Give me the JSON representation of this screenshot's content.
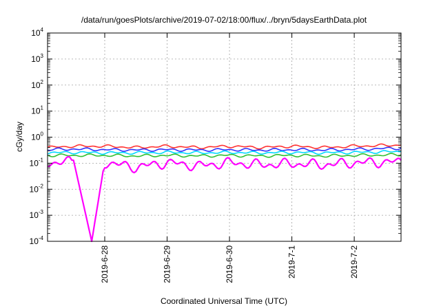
{
  "chart_data": {
    "type": "line",
    "title": "/data/run/goesPlots/archive/2019-07-02/18:00/flux/../bryn/5daysEarthData.plot",
    "xlabel": "Coordinated Universal Time (UTC)",
    "ylabel": "cGy/day",
    "yscale": "log",
    "ylim": [
      0.0001,
      10000
    ],
    "xlim": [
      "2019-06-27T02:00",
      "2019-07-02T18:00"
    ],
    "grid": true,
    "legend": "none",
    "y_ticks": [
      {
        "base": "10",
        "exp": "-4",
        "value": 0.0001
      },
      {
        "base": "10",
        "exp": "-3",
        "value": 0.001
      },
      {
        "base": "10",
        "exp": "-2",
        "value": 0.01
      },
      {
        "base": "10",
        "exp": "-1",
        "value": 0.1
      },
      {
        "base": "10",
        "exp": "0",
        "value": 1
      },
      {
        "base": "10",
        "exp": "1",
        "value": 10
      },
      {
        "base": "10",
        "exp": "2",
        "value": 100
      },
      {
        "base": "10",
        "exp": "3",
        "value": 1000
      },
      {
        "base": "10",
        "exp": "4",
        "value": 10000
      }
    ],
    "x_ticks": [
      {
        "label": "2019-6-28",
        "value": "2019-06-28T00:00"
      },
      {
        "label": "2019-6-29",
        "value": "2019-06-29T00:00"
      },
      {
        "label": "2019-6-30",
        "value": "2019-06-30T00:00"
      },
      {
        "label": "2019-7-1",
        "value": "2019-07-01T00:00"
      },
      {
        "label": "2019-7-2",
        "value": "2019-07-02T00:00"
      }
    ],
    "series": [
      {
        "color": "#ff3030",
        "x": [
          "2019-06-27T02:00",
          "2019-06-27T12:00",
          "2019-06-28T00:00",
          "2019-06-28T12:00",
          "2019-06-29T00:00",
          "2019-06-29T12:00",
          "2019-06-30T00:00",
          "2019-06-30T12:00",
          "2019-07-01T00:00",
          "2019-07-01T12:00",
          "2019-07-02T00:00",
          "2019-07-02T18:00"
        ],
        "values": [
          0.4,
          0.45,
          0.45,
          0.4,
          0.45,
          0.4,
          0.45,
          0.4,
          0.45,
          0.4,
          0.45,
          0.5
        ]
      },
      {
        "color": "#3030ff",
        "x": [
          "2019-06-27T02:00",
          "2019-06-27T12:00",
          "2019-06-28T00:00",
          "2019-06-28T12:00",
          "2019-06-29T00:00",
          "2019-06-29T12:00",
          "2019-06-30T00:00",
          "2019-06-30T12:00",
          "2019-07-01T00:00",
          "2019-07-01T12:00",
          "2019-07-02T00:00",
          "2019-07-02T18:00"
        ],
        "values": [
          0.33,
          0.35,
          0.33,
          0.32,
          0.33,
          0.32,
          0.33,
          0.32,
          0.33,
          0.32,
          0.34,
          0.38
        ]
      },
      {
        "color": "#00d8ff",
        "x": [
          "2019-06-27T02:00",
          "2019-06-27T12:00",
          "2019-06-28T00:00",
          "2019-06-28T12:00",
          "2019-06-29T00:00",
          "2019-06-29T12:00",
          "2019-06-30T00:00",
          "2019-06-30T12:00",
          "2019-07-01T00:00",
          "2019-07-01T12:00",
          "2019-07-02T00:00",
          "2019-07-02T18:00"
        ],
        "values": [
          0.25,
          0.26,
          0.25,
          0.25,
          0.26,
          0.25,
          0.26,
          0.25,
          0.26,
          0.25,
          0.26,
          0.28
        ]
      },
      {
        "color": "#30c030",
        "x": [
          "2019-06-27T02:00",
          "2019-06-27T12:00",
          "2019-06-28T00:00",
          "2019-06-28T12:00",
          "2019-06-29T00:00",
          "2019-06-29T12:00",
          "2019-06-30T00:00",
          "2019-06-30T12:00",
          "2019-07-01T00:00",
          "2019-07-01T12:00",
          "2019-07-02T00:00",
          "2019-07-02T18:00"
        ],
        "values": [
          0.2,
          0.2,
          0.2,
          0.19,
          0.2,
          0.19,
          0.2,
          0.19,
          0.2,
          0.19,
          0.2,
          0.21
        ]
      },
      {
        "color": "#ff00ff",
        "x": [
          "2019-06-27T02:00",
          "2019-06-27T12:00",
          "2019-06-27T19:00",
          "2019-06-28T00:00",
          "2019-06-28T12:00",
          "2019-06-29T00:00",
          "2019-06-29T12:00",
          "2019-06-30T00:00",
          "2019-06-30T12:00",
          "2019-07-01T00:00",
          "2019-07-01T12:00",
          "2019-07-02T00:00",
          "2019-07-02T18:00"
        ],
        "values": [
          0.12,
          0.13,
          0.0001,
          0.12,
          0.08,
          0.12,
          0.09,
          0.12,
          0.1,
          0.11,
          0.1,
          0.12,
          0.13
        ]
      }
    ]
  }
}
